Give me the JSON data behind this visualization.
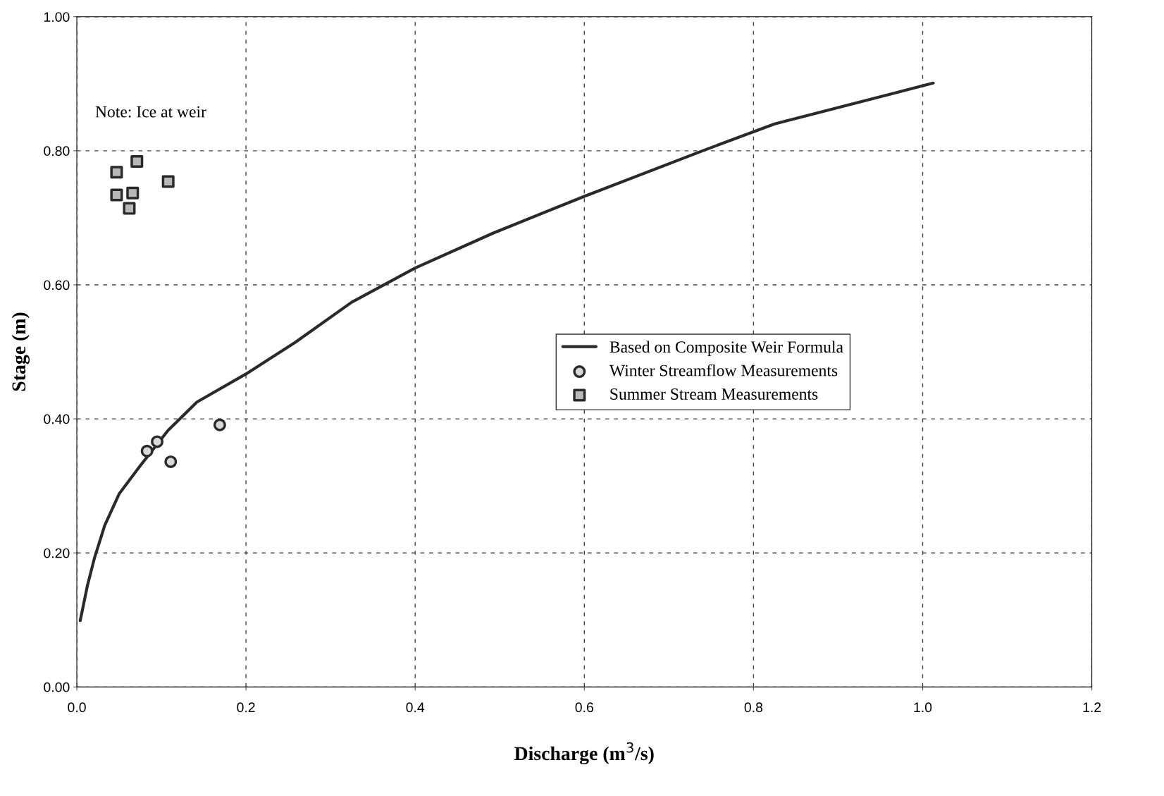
{
  "chart_data": {
    "type": "scatter",
    "xlabel": "Discharge (m$^{3}$/s)",
    "ylabel": "Stage (m)",
    "xlim": [
      0,
      1.2
    ],
    "ylim": [
      0,
      1.0
    ],
    "xticks": [
      {
        "value": 0,
        "label": "0.0"
      },
      0.2,
      0.4,
      0.6,
      0.8,
      {
        "value": 1.0,
        "label": "1.0"
      },
      1.2
    ],
    "yticks": [
      {
        "value": 0,
        "label": "0.00"
      },
      {
        "value": 0.2,
        "label": "0.20"
      },
      {
        "value": 0.4,
        "label": "0.40"
      },
      {
        "value": 0.6,
        "label": "0.60"
      },
      {
        "value": 0.8,
        "label": "0.80"
      },
      {
        "value": 1.0,
        "label": "1.00"
      }
    ],
    "grid": true,
    "legend": "right",
    "annotations": [
      "Note: Ice at weir"
    ],
    "series": [
      {
        "name": "Based on Composite Weir Formula",
        "type": "line",
        "color": "#2a2a2a",
        "marker": "none",
        "line_style": "solid",
        "x": [
          0.004,
          0.0125,
          0.021,
          0.033,
          0.05,
          0.075,
          0.108,
          0.142,
          0.2,
          0.258,
          0.325,
          0.4,
          0.492,
          0.6,
          0.742,
          0.825,
          1.0125
        ],
        "values": [
          0.099,
          0.151,
          0.193,
          0.241,
          0.288,
          0.33,
          0.383,
          0.425,
          0.467,
          0.514,
          0.574,
          0.625,
          0.677,
          0.732,
          0.801,
          0.84,
          0.901
        ]
      },
      {
        "name": "Winter Streamflow Measurements",
        "color": "#2a2a2a",
        "marker": "circle",
        "x": [
          0.083,
          0.095,
          0.111,
          0.169
        ],
        "values": [
          0.352,
          0.366,
          0.336,
          0.391
        ]
      },
      {
        "name": "Summer Stream Measurements",
        "color": "#2a2a2a",
        "marker": "square",
        "x": [
          0.047,
          0.071,
          0.047,
          0.066,
          0.062,
          0.108
        ],
        "values": [
          0.768,
          0.784,
          0.734,
          0.737,
          0.714,
          0.754
        ]
      }
    ]
  }
}
